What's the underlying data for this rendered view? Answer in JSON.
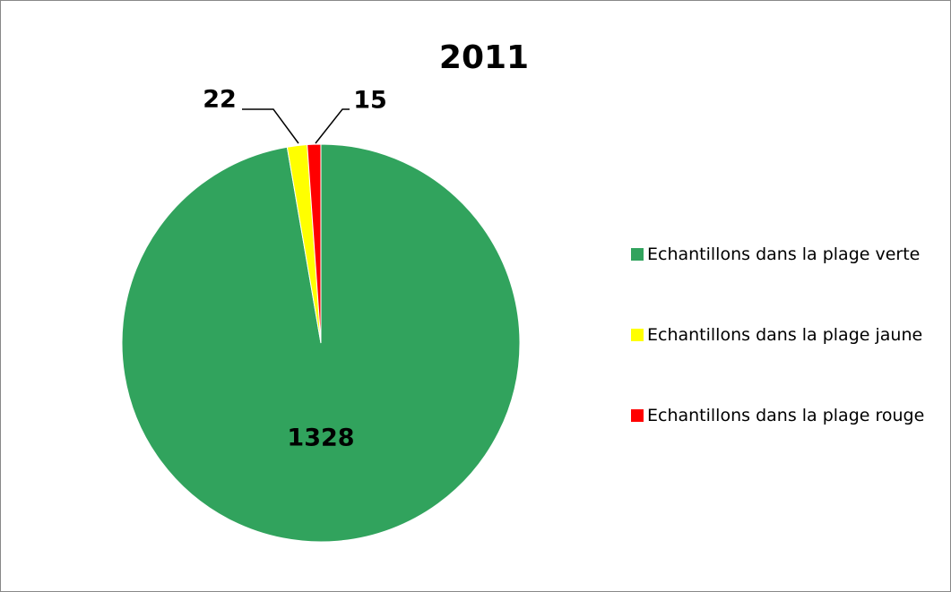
{
  "chart_data": {
    "type": "pie",
    "title": "2011",
    "categories": [
      "Echantillons dans la plage verte",
      "Echantillons dans la plage jaune",
      "Echantillons dans la plage rouge"
    ],
    "values": [
      1328,
      22,
      15
    ],
    "colors": [
      "#31a35d",
      "#ffff00",
      "#ff0000"
    ],
    "legend": "right"
  }
}
